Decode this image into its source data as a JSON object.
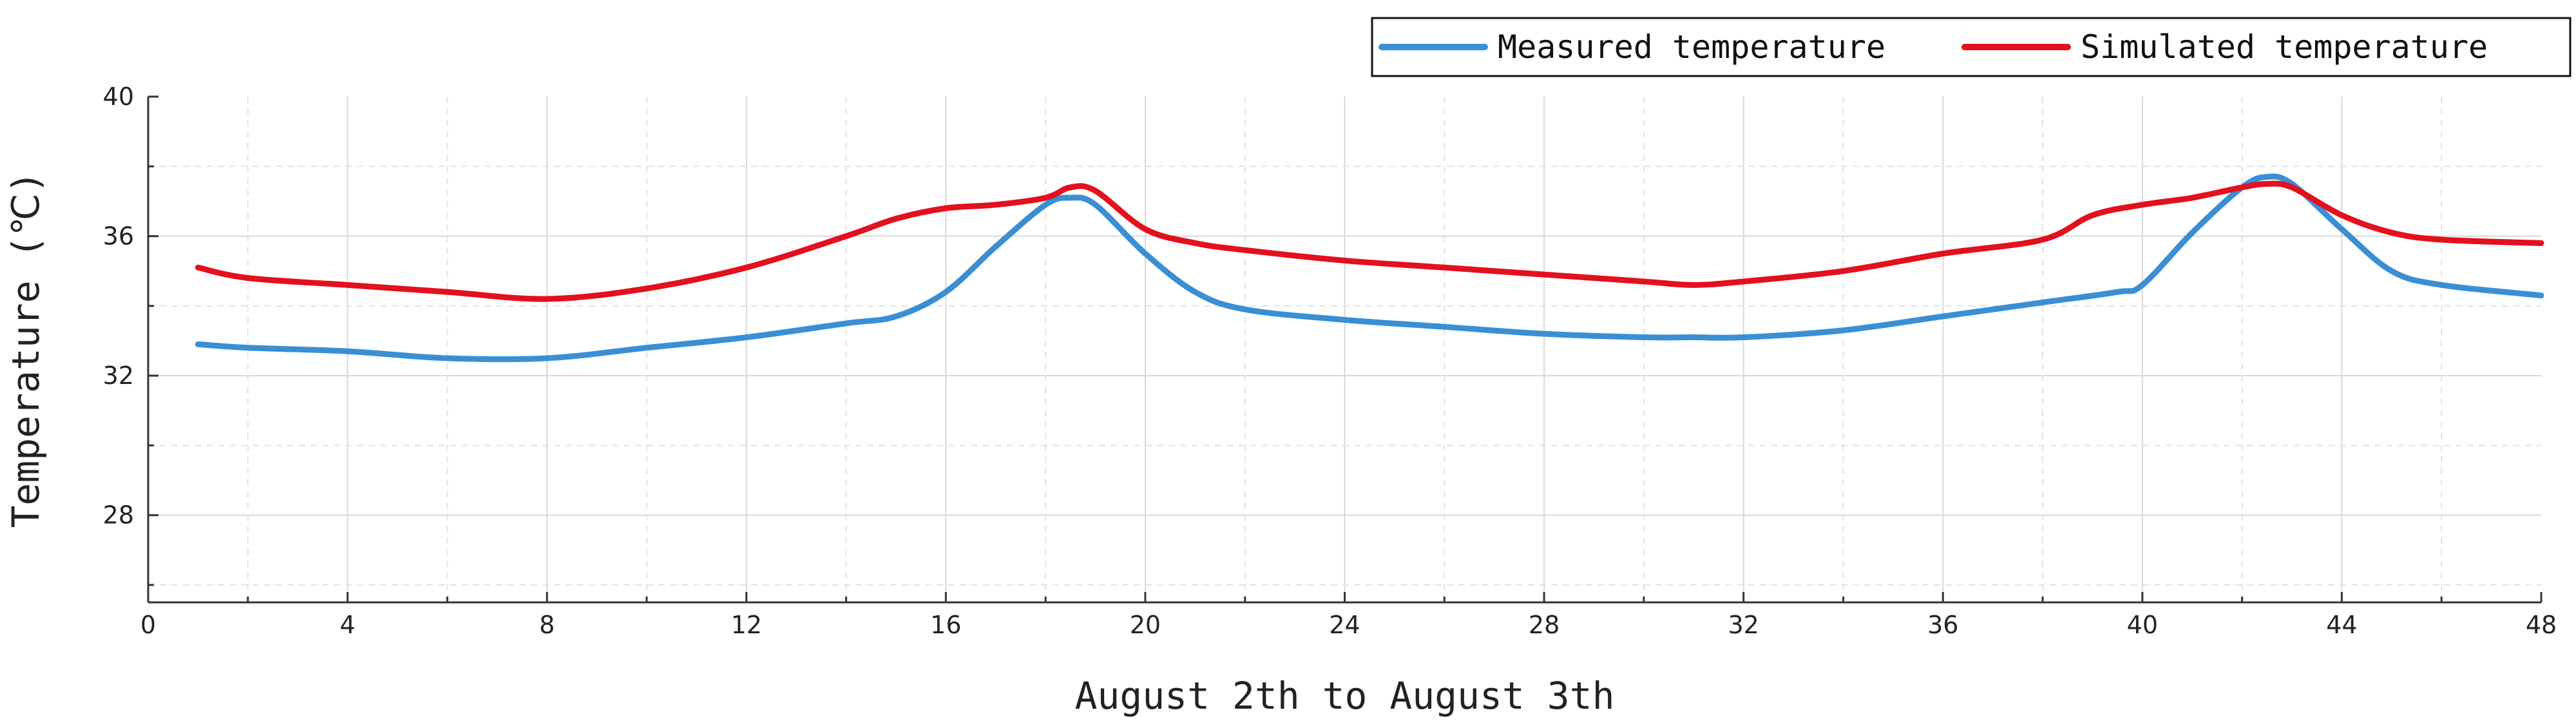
{
  "chart_data": {
    "type": "line",
    "xlabel": "August 2th to August 3th",
    "ylabel": "Temperature (℃)",
    "xlim": [
      0,
      48
    ],
    "ylim": [
      25.5,
      40
    ],
    "xticks": [
      0,
      4,
      8,
      12,
      16,
      20,
      24,
      28,
      32,
      36,
      40,
      44,
      48
    ],
    "yticks": [
      28,
      32,
      36,
      40
    ],
    "grid": true,
    "legend_position": "top-right",
    "series": [
      {
        "name": "Measured temperature",
        "color": "#3a8fd4",
        "x": [
          1,
          2,
          4,
          6,
          8,
          10,
          12,
          14,
          15,
          16,
          17,
          18,
          18.5,
          19,
          20,
          21,
          22,
          24,
          26,
          28,
          30,
          31,
          32,
          34,
          36,
          38,
          39.5,
          40,
          41,
          42,
          42.5,
          43,
          44,
          45,
          46,
          48
        ],
        "y": [
          32.9,
          32.8,
          32.7,
          32.5,
          32.5,
          32.8,
          33.1,
          33.5,
          33.7,
          34.4,
          35.7,
          36.9,
          37.1,
          36.9,
          35.5,
          34.4,
          33.9,
          33.6,
          33.4,
          33.2,
          33.1,
          33.1,
          33.1,
          33.3,
          33.7,
          34.1,
          34.4,
          34.6,
          36.1,
          37.4,
          37.7,
          37.5,
          36.2,
          35.0,
          34.6,
          34.3
        ]
      },
      {
        "name": "Simulated temperature",
        "color": "#e3101d",
        "x": [
          1,
          2,
          4,
          6,
          8,
          10,
          12,
          14,
          15,
          16,
          17,
          18,
          18.5,
          19,
          20,
          21,
          22,
          24,
          26,
          28,
          30,
          31,
          32,
          34,
          36,
          38,
          39,
          40,
          41,
          42,
          42.5,
          43,
          44,
          45,
          46,
          48
        ],
        "y": [
          35.1,
          34.8,
          34.6,
          34.4,
          34.2,
          34.5,
          35.1,
          36.0,
          36.5,
          36.8,
          36.9,
          37.1,
          37.4,
          37.3,
          36.2,
          35.8,
          35.6,
          35.3,
          35.1,
          34.9,
          34.7,
          34.6,
          34.7,
          35.0,
          35.5,
          35.9,
          36.6,
          36.9,
          37.1,
          37.4,
          37.5,
          37.4,
          36.6,
          36.1,
          35.9,
          35.8
        ]
      }
    ]
  }
}
